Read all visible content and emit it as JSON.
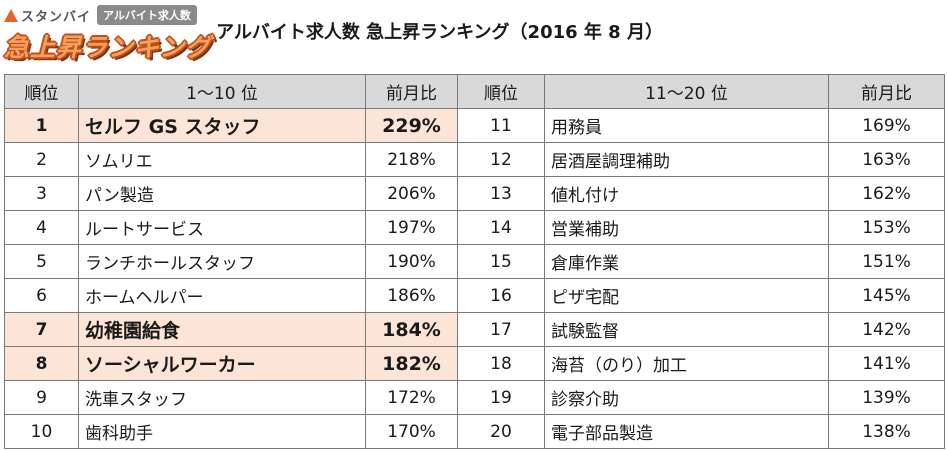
{
  "header": {
    "brand_name": "スタンバイ",
    "badge": "アルバイト求人数",
    "logo_title": "急上昇ランキング",
    "title": "アルバイト求人数 急上昇ランキング（2016 年 8 月）",
    "accent_color": "#e8612a",
    "highlight_color": "#fce4d6",
    "header_bg": "#d9d9d9"
  },
  "table": {
    "left_headers": {
      "rank": "順位",
      "name": "1〜10 位",
      "pct": "前月比"
    },
    "right_headers": {
      "rank": "順位",
      "name": "11〜20 位",
      "pct": "前月比"
    },
    "rows": [
      {
        "left": {
          "rank": "1",
          "name": "セルフ GS スタッフ",
          "pct": "229%",
          "highlighted": true
        },
        "right": {
          "rank": "11",
          "name": "用務員",
          "pct": "169%"
        }
      },
      {
        "left": {
          "rank": "2",
          "name": "ソムリエ",
          "pct": "218%",
          "highlighted": false
        },
        "right": {
          "rank": "12",
          "name": "居酒屋調理補助",
          "pct": "163%"
        }
      },
      {
        "left": {
          "rank": "3",
          "name": "パン製造",
          "pct": "206%",
          "highlighted": false
        },
        "right": {
          "rank": "13",
          "name": "値札付け",
          "pct": "162%"
        }
      },
      {
        "left": {
          "rank": "4",
          "name": "ルートサービス",
          "pct": "197%",
          "highlighted": false
        },
        "right": {
          "rank": "14",
          "name": "営業補助",
          "pct": "153%"
        }
      },
      {
        "left": {
          "rank": "5",
          "name": "ランチホールスタッフ",
          "pct": "190%",
          "highlighted": false
        },
        "right": {
          "rank": "15",
          "name": "倉庫作業",
          "pct": "151%"
        }
      },
      {
        "left": {
          "rank": "6",
          "name": "ホームヘルパー",
          "pct": "186%",
          "highlighted": false
        },
        "right": {
          "rank": "16",
          "name": "ピザ宅配",
          "pct": "145%"
        }
      },
      {
        "left": {
          "rank": "7",
          "name": "幼稚園給食",
          "pct": "184%",
          "highlighted": true
        },
        "right": {
          "rank": "17",
          "name": "試験監督",
          "pct": "142%"
        }
      },
      {
        "left": {
          "rank": "8",
          "name": "ソーシャルワーカー",
          "pct": "182%",
          "highlighted": true
        },
        "right": {
          "rank": "18",
          "name": "海苔（のり）加工",
          "pct": "141%"
        }
      },
      {
        "left": {
          "rank": "9",
          "name": "洗車スタッフ",
          "pct": "172%",
          "highlighted": false
        },
        "right": {
          "rank": "19",
          "name": "診察介助",
          "pct": "139%"
        }
      },
      {
        "left": {
          "rank": "10",
          "name": "歯科助手",
          "pct": "170%",
          "highlighted": false
        },
        "right": {
          "rank": "20",
          "name": "電子部品製造",
          "pct": "138%"
        }
      }
    ]
  }
}
